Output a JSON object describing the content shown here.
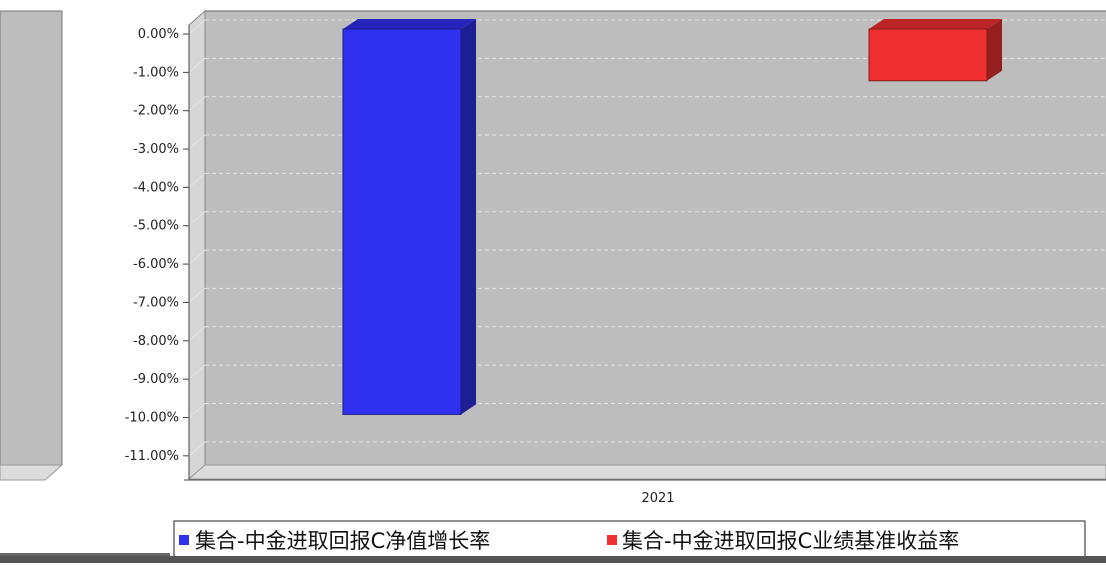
{
  "chart_data": {
    "type": "bar",
    "categories": [
      "2021"
    ],
    "series": [
      {
        "name": "集合-中金进取回报C净值增长率",
        "values": [
          -10.05
        ],
        "color": "#3030f0"
      },
      {
        "name": "集合-中金进取回报C业绩基准收益率",
        "values": [
          -1.35
        ],
        "color": "#f03030"
      }
    ],
    "ylim": [
      -11.5,
      0
    ],
    "yticks": [
      "0.00%",
      "-1.00%",
      "-2.00%",
      "-3.00%",
      "-4.00%",
      "-5.00%",
      "-6.00%",
      "-7.00%",
      "-8.00%",
      "-9.00%",
      "-10.00%",
      "-11.00%"
    ],
    "grid": true,
    "legend_position": "bottom",
    "colors": {
      "plot_background": "#bdbdbd",
      "grid": "#e4e4e4"
    }
  }
}
